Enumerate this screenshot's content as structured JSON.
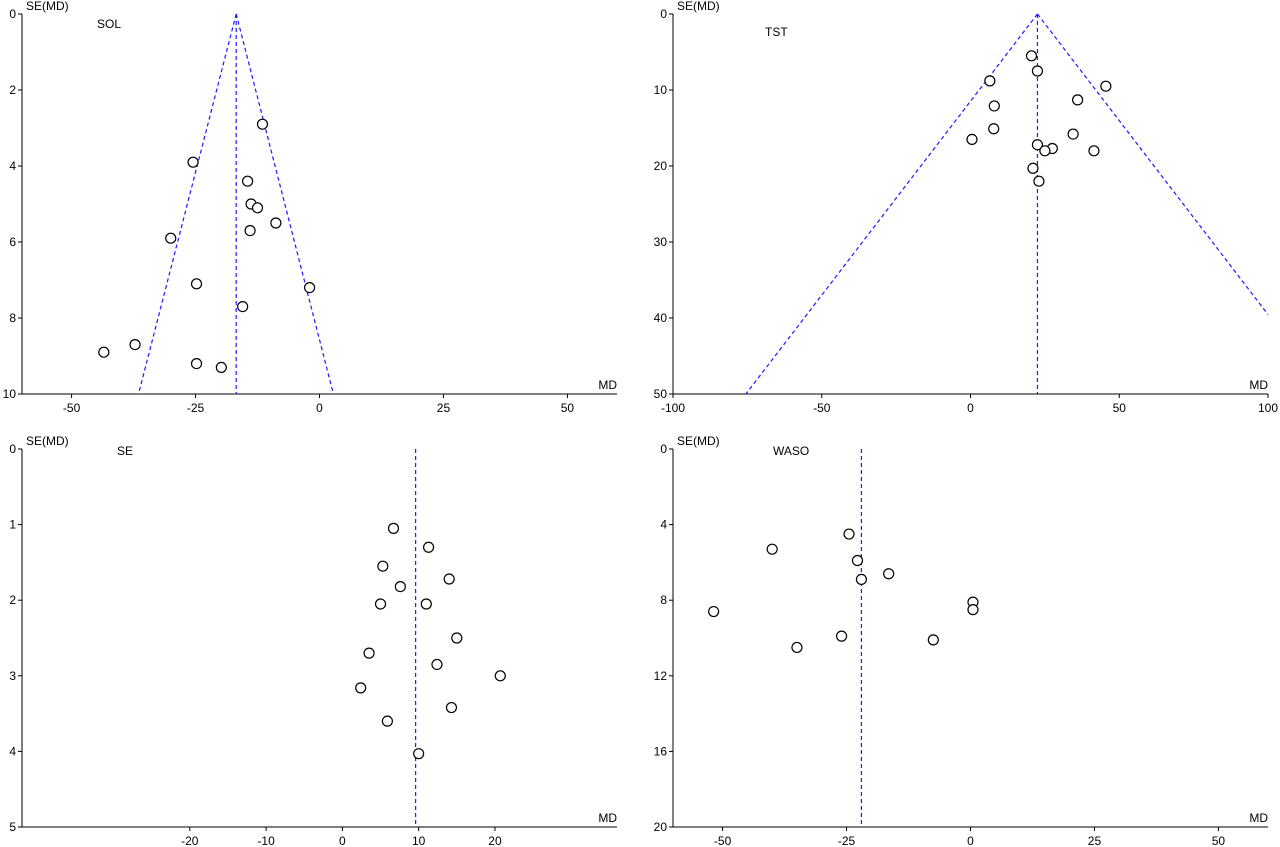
{
  "chart_data": [
    {
      "type": "scatter",
      "title": "SOL",
      "xlabel": "MD",
      "ylabel": "SE(MD)",
      "xlim": [
        -60,
        60
      ],
      "ylim": [
        0,
        10
      ],
      "y_reversed": true,
      "xticks": [
        -50,
        -25,
        0,
        25,
        50
      ],
      "yticks": [
        0,
        2,
        4,
        6,
        8,
        10
      ],
      "pooled_md": -16.8,
      "funnel_apex_se": 0,
      "funnel_base_se": 10,
      "funnel_left_at_base": -36.5,
      "funnel_right_at_base": 2.8,
      "points": [
        {
          "x": -11.5,
          "y": 2.9
        },
        {
          "x": -25.5,
          "y": 3.9
        },
        {
          "x": -14.5,
          "y": 4.4
        },
        {
          "x": -13.8,
          "y": 5.0
        },
        {
          "x": -12.5,
          "y": 5.1
        },
        {
          "x": -8.8,
          "y": 5.5
        },
        {
          "x": -14.0,
          "y": 5.7
        },
        {
          "x": -30.0,
          "y": 5.9
        },
        {
          "x": -24.8,
          "y": 7.1
        },
        {
          "x": -2.0,
          "y": 7.2
        },
        {
          "x": -15.5,
          "y": 7.7
        },
        {
          "x": -37.2,
          "y": 8.7
        },
        {
          "x": -43.5,
          "y": 8.9
        },
        {
          "x": -24.8,
          "y": 9.2
        },
        {
          "x": -19.8,
          "y": 9.3
        }
      ],
      "grid": false
    },
    {
      "type": "scatter",
      "title": "TST",
      "xlabel": "MD",
      "ylabel": "SE(MD)",
      "xlim": [
        -100,
        100
      ],
      "ylim": [
        0,
        50
      ],
      "y_reversed": true,
      "xticks": [
        -100,
        -50,
        0,
        50,
        100
      ],
      "yticks": [
        0,
        10,
        20,
        30,
        40,
        50
      ],
      "pooled_md": 22.5,
      "funnel_apex_se": 0,
      "funnel_base_se": 50,
      "funnel_left_at_base": -75.5,
      "funnel_right_at_base": 120.5,
      "points": [
        {
          "x": 20.5,
          "y": 5.5
        },
        {
          "x": 22.5,
          "y": 7.5
        },
        {
          "x": 6.5,
          "y": 8.8
        },
        {
          "x": 45.5,
          "y": 9.5
        },
        {
          "x": 36.0,
          "y": 11.3
        },
        {
          "x": 8.0,
          "y": 12.1
        },
        {
          "x": 7.8,
          "y": 15.1
        },
        {
          "x": 34.5,
          "y": 15.8
        },
        {
          "x": 0.5,
          "y": 16.5
        },
        {
          "x": 22.5,
          "y": 17.2
        },
        {
          "x": 27.5,
          "y": 17.7
        },
        {
          "x": 25.0,
          "y": 18.0
        },
        {
          "x": 41.5,
          "y": 18.0
        },
        {
          "x": 21.0,
          "y": 20.3
        },
        {
          "x": 23.0,
          "y": 22.0
        }
      ],
      "grid": false
    },
    {
      "type": "scatter",
      "title": "SE",
      "xlabel": "MD",
      "ylabel": "SE(MD)",
      "xlim": [
        -42,
        36
      ],
      "ylim": [
        0,
        5
      ],
      "y_reversed": true,
      "xticks": [
        -20,
        -10,
        0,
        10,
        20
      ],
      "yticks": [
        0,
        1,
        2,
        3,
        4,
        5
      ],
      "pooled_md": 9.6,
      "points": [
        {
          "x": 6.7,
          "y": 1.05
        },
        {
          "x": 11.3,
          "y": 1.3
        },
        {
          "x": 5.3,
          "y": 1.55
        },
        {
          "x": 14.0,
          "y": 1.72
        },
        {
          "x": 7.6,
          "y": 1.82
        },
        {
          "x": 5.0,
          "y": 2.05
        },
        {
          "x": 11.0,
          "y": 2.05
        },
        {
          "x": 15.0,
          "y": 2.5
        },
        {
          "x": 3.5,
          "y": 2.7
        },
        {
          "x": 12.4,
          "y": 2.85
        },
        {
          "x": 20.7,
          "y": 3.0
        },
        {
          "x": 2.4,
          "y": 3.16
        },
        {
          "x": 14.3,
          "y": 3.42
        },
        {
          "x": 5.9,
          "y": 3.6
        },
        {
          "x": 10.0,
          "y": 4.03
        }
      ],
      "grid": false
    },
    {
      "type": "scatter",
      "title": "WASO",
      "xlabel": "MD",
      "ylabel": "SE(MD)",
      "xlim": [
        -60,
        60
      ],
      "ylim": [
        0,
        20
      ],
      "y_reversed": true,
      "xticks": [
        -50,
        -25,
        0,
        25,
        50
      ],
      "yticks": [
        0,
        4,
        8,
        12,
        16,
        20
      ],
      "pooled_md": -22.0,
      "points": [
        {
          "x": -24.5,
          "y": 4.5
        },
        {
          "x": -40.0,
          "y": 5.3
        },
        {
          "x": -22.8,
          "y": 5.9
        },
        {
          "x": -16.5,
          "y": 6.6
        },
        {
          "x": -22.0,
          "y": 6.9
        },
        {
          "x": 0.5,
          "y": 8.1
        },
        {
          "x": 0.5,
          "y": 8.5
        },
        {
          "x": -51.8,
          "y": 8.6
        },
        {
          "x": -26.0,
          "y": 9.9
        },
        {
          "x": -7.5,
          "y": 10.1
        },
        {
          "x": -35.0,
          "y": 10.5
        }
      ],
      "grid": false
    }
  ],
  "colors": {
    "axis": "#000000",
    "reference_line": "#1a1aff",
    "marker_stroke": "#000000",
    "marker_fill": "#ffffff"
  }
}
